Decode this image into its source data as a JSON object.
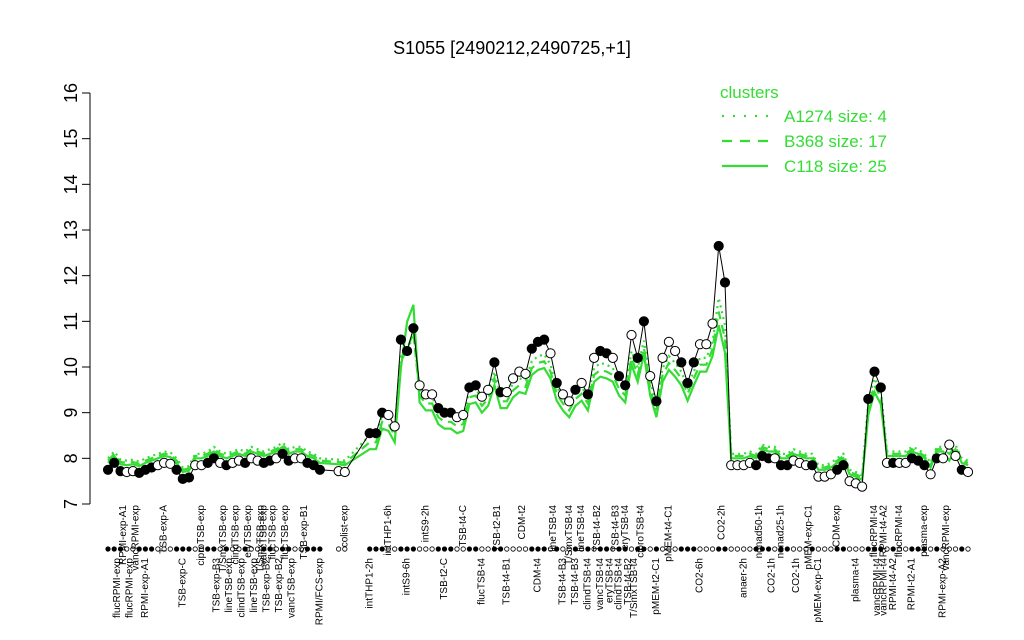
{
  "chart_data": {
    "type": "line",
    "title": "S1055 [2490212,2490725,+1]",
    "xlabel": "",
    "ylabel": "",
    "ylim": [
      7,
      16
    ],
    "yticks": [
      "7",
      "8",
      "9",
      "10",
      "11",
      "12",
      "13",
      "14",
      "15",
      "16"
    ],
    "legend": {
      "title": "clusters",
      "placement": "top-right",
      "entries": [
        {
          "label": "A1274 size: 4",
          "style": "dotted"
        },
        {
          "label": "B368 size: 17",
          "style": "dashed"
        },
        {
          "label": "C118 size: 25",
          "style": "solid"
        }
      ]
    },
    "colors": {
      "cluster": "#33dd33",
      "data": "#000000"
    },
    "xlabels": [
      {
        "label": "flucRPMI-exp",
        "i": 1.5,
        "row": 1
      },
      {
        "label": "RPMI-exp-A1",
        "i": 2.5,
        "row": 0
      },
      {
        "label": "flucRPMI-exp",
        "i": 3.5,
        "row": 1
      },
      {
        "label": "vancRPMI-exp",
        "i": 4.5,
        "row": 0
      },
      {
        "label": "RPMI-exp-A1",
        "i": 6.0,
        "row": 1
      },
      {
        "label": "TSB-exp-A",
        "i": 9.0,
        "row": 0
      },
      {
        "label": "TSB-exp-C",
        "i": 12.0,
        "row": 1
      },
      {
        "label": "ciproTSB-exp",
        "i": 15.0,
        "row": 0
      },
      {
        "label": "TSB-exp-B3",
        "i": 17.5,
        "row": 1
      },
      {
        "label": "T/SmxTSB-exp",
        "i": 18.5,
        "row": 0
      },
      {
        "label": "lineTSB-exp",
        "i": 19.5,
        "row": 1
      },
      {
        "label": "clindTSB-exp",
        "i": 20.5,
        "row": 0
      },
      {
        "label": "clindTSB-exp",
        "i": 21.5,
        "row": 1
      },
      {
        "label": "eryTSB-exp",
        "i": 22.5,
        "row": 0
      },
      {
        "label": "lineTSB-exp",
        "i": 23.5,
        "row": 1
      },
      {
        "label": "T/SmxTSB-exp",
        "i": 24.5,
        "row": 0
      },
      {
        "label": "TSB-exp-B2",
        "i": 25.5,
        "row": 1
      },
      {
        "label": "vancTSB-exp",
        "i": 25.0,
        "row": 0
      },
      {
        "label": "flucTSB-exp",
        "i": 26.5,
        "row": 0
      },
      {
        "label": "TSB-exp-B2",
        "i": 27.5,
        "row": 1
      },
      {
        "label": "flucTSB-exp",
        "i": 28.5,
        "row": 0
      },
      {
        "label": "vancTSB-exp",
        "i": 29.5,
        "row": 1
      },
      {
        "label": "TSB-exp-B1",
        "i": 31.5,
        "row": 0
      },
      {
        "label": "RPMI/FCS-exp",
        "i": 34.0,
        "row": 1
      },
      {
        "label": "colist-exp",
        "i": 38.0,
        "row": 0
      },
      {
        "label": "intTHP1-2h",
        "i": 42.0,
        "row": 1
      },
      {
        "label": "intTHP1-6h",
        "i": 45.0,
        "row": 0
      },
      {
        "label": "intS9-6h",
        "i": 48.0,
        "row": 1
      },
      {
        "label": "intS9-2h",
        "i": 51.0,
        "row": 0
      },
      {
        "label": "TSB-t2-C",
        "i": 54.0,
        "row": 1
      },
      {
        "label": "TSB-t4-C",
        "i": 57.0,
        "row": 0
      },
      {
        "label": "flucTSB-t4",
        "i": 60.0,
        "row": 1
      },
      {
        "label": "TSB-t2-B1",
        "i": 62.5,
        "row": 0
      },
      {
        "label": "TSB-t4-B1",
        "i": 64.0,
        "row": 1
      },
      {
        "label": "CDM-t2",
        "i": 66.5,
        "row": 0
      },
      {
        "label": "CDM-t4",
        "i": 69.0,
        "row": 1
      },
      {
        "label": "lineTSB-t4",
        "i": 71.5,
        "row": 0
      },
      {
        "label": "TSB-t4-B3",
        "i": 73.0,
        "row": 1
      },
      {
        "label": "T/SmxTSB-t4",
        "i": 74.0,
        "row": 0
      },
      {
        "label": "TSB-t4-B3",
        "i": 75.0,
        "row": 1
      },
      {
        "label": "lineTSB-t4",
        "i": 76.0,
        "row": 0
      },
      {
        "label": "clindTSB-t4",
        "i": 77.0,
        "row": 1
      },
      {
        "label": "TSB-t4-B2",
        "i": 78.5,
        "row": 0
      },
      {
        "label": "vancTSB-t4",
        "i": 79.0,
        "row": 1
      },
      {
        "label": "eryTSB-t4",
        "i": 80.5,
        "row": 1
      },
      {
        "label": "TSB-t4-B3",
        "i": 81.5,
        "row": 0
      },
      {
        "label": "clindTSB-t4",
        "i": 82.0,
        "row": 1
      },
      {
        "label": "eryTSB-t4",
        "i": 83.0,
        "row": 0
      },
      {
        "label": "TSB-t4-B2",
        "i": 83.5,
        "row": 1
      },
      {
        "label": "T/SmxTSB-t4",
        "i": 84.5,
        "row": 1
      },
      {
        "label": "ciproTSB-t4",
        "i": 85.5,
        "row": 0
      },
      {
        "label": "pMEM-t2-C1",
        "i": 88.0,
        "row": 1
      },
      {
        "label": "pMEM-t4-C1",
        "i": 90.0,
        "row": 0
      },
      {
        "label": "CO2-6h",
        "i": 95.0,
        "row": 1
      },
      {
        "label": "CO2-2h",
        "i": 98.5,
        "row": 0
      },
      {
        "label": "anaer-2h",
        "i": 102.0,
        "row": 1
      },
      {
        "label": "nonad50-1h",
        "i": 104.5,
        "row": 0
      },
      {
        "label": "CO2-1h",
        "i": 106.5,
        "row": 1
      },
      {
        "label": "nonad25-1h",
        "i": 108.0,
        "row": 0
      },
      {
        "label": "CO2-1h",
        "i": 110.5,
        "row": 1
      },
      {
        "label": "pMEM-exp-C1",
        "i": 112.5,
        "row": 0
      },
      {
        "label": "pMEM-exp-C1",
        "i": 114.0,
        "row": 1
      },
      {
        "label": "CDM-exp",
        "i": 117.0,
        "row": 0
      },
      {
        "label": "plasma-t4",
        "i": 120.0,
        "row": 1
      },
      {
        "label": "flucRPMI-t4",
        "i": 123.0,
        "row": 0
      },
      {
        "label": "vancRPMI-t4",
        "i": 123.5,
        "row": 1
      },
      {
        "label": "RPMI-t4-A2",
        "i": 124.5,
        "row": 0
      },
      {
        "label": "vancRPMI-t4",
        "i": 124.5,
        "row": 1
      },
      {
        "label": "RPMI-t4-A2",
        "i": 126.0,
        "row": 1
      },
      {
        "label": "flucRPMI-t4",
        "i": 127.0,
        "row": 0
      },
      {
        "label": "RPMI-t2-A1",
        "i": 129.0,
        "row": 1
      },
      {
        "label": "plasma-exp",
        "i": 131.0,
        "row": 0
      },
      {
        "label": "RPMI-exp-A2",
        "i": 134.0,
        "row": 1
      },
      {
        "label": "vancRPMI-exp",
        "i": 134.5,
        "row": 0
      }
    ],
    "points": [
      {
        "i": 0,
        "y": 7.75,
        "filled": true
      },
      {
        "i": 1,
        "y": 7.9,
        "filled": true
      },
      {
        "i": 2,
        "y": 7.72,
        "filled": true
      },
      {
        "i": 3,
        "y": 7.7,
        "filled": false
      },
      {
        "i": 4,
        "y": 7.72,
        "filled": false
      },
      {
        "i": 5,
        "y": 7.68,
        "filled": true
      },
      {
        "i": 6,
        "y": 7.75,
        "filled": true
      },
      {
        "i": 7,
        "y": 7.8,
        "filled": true
      },
      {
        "i": 8,
        "y": 7.85,
        "filled": false
      },
      {
        "i": 9,
        "y": 7.9,
        "filled": false
      },
      {
        "i": 10,
        "y": 7.88,
        "filled": false
      },
      {
        "i": 11,
        "y": 7.75,
        "filled": true
      },
      {
        "i": 12,
        "y": 7.55,
        "filled": true
      },
      {
        "i": 13,
        "y": 7.58,
        "filled": true
      },
      {
        "i": 14,
        "y": 7.85,
        "filled": false
      },
      {
        "i": 15,
        "y": 7.85,
        "filled": false
      },
      {
        "i": 16,
        "y": 7.9,
        "filled": true
      },
      {
        "i": 17,
        "y": 8.0,
        "filled": true
      },
      {
        "i": 18,
        "y": 7.9,
        "filled": false
      },
      {
        "i": 19,
        "y": 7.85,
        "filled": true
      },
      {
        "i": 20,
        "y": 7.9,
        "filled": false
      },
      {
        "i": 21,
        "y": 7.95,
        "filled": false
      },
      {
        "i": 22,
        "y": 7.9,
        "filled": true
      },
      {
        "i": 23,
        "y": 8.0,
        "filled": false
      },
      {
        "i": 24,
        "y": 7.95,
        "filled": false
      },
      {
        "i": 25,
        "y": 7.9,
        "filled": true
      },
      {
        "i": 26,
        "y": 7.95,
        "filled": true
      },
      {
        "i": 27,
        "y": 8.0,
        "filled": false
      },
      {
        "i": 28,
        "y": 8.1,
        "filled": true
      },
      {
        "i": 29,
        "y": 7.95,
        "filled": true
      },
      {
        "i": 30,
        "y": 8.0,
        "filled": false
      },
      {
        "i": 31,
        "y": 8.0,
        "filled": false
      },
      {
        "i": 32,
        "y": 7.9,
        "filled": true
      },
      {
        "i": 33,
        "y": 7.85,
        "filled": true
      },
      {
        "i": 34,
        "y": 7.75,
        "filled": true
      },
      {
        "i": 37,
        "y": 7.72,
        "filled": false
      },
      {
        "i": 38,
        "y": 7.7,
        "filled": false
      },
      {
        "i": 42,
        "y": 8.55,
        "filled": true
      },
      {
        "i": 43,
        "y": 8.55,
        "filled": true
      },
      {
        "i": 44,
        "y": 9.0,
        "filled": true
      },
      {
        "i": 45,
        "y": 8.95,
        "filled": false
      },
      {
        "i": 46,
        "y": 8.7,
        "filled": false
      },
      {
        "i": 47,
        "y": 10.6,
        "filled": true
      },
      {
        "i": 48,
        "y": 10.35,
        "filled": true
      },
      {
        "i": 49,
        "y": 10.85,
        "filled": true
      },
      {
        "i": 50,
        "y": 9.6,
        "filled": false
      },
      {
        "i": 51,
        "y": 9.4,
        "filled": false
      },
      {
        "i": 52,
        "y": 9.4,
        "filled": false
      },
      {
        "i": 53,
        "y": 9.1,
        "filled": true
      },
      {
        "i": 54,
        "y": 9.0,
        "filled": true
      },
      {
        "i": 55,
        "y": 9.0,
        "filled": true
      },
      {
        "i": 56,
        "y": 8.9,
        "filled": false
      },
      {
        "i": 57,
        "y": 8.95,
        "filled": false
      },
      {
        "i": 58,
        "y": 9.55,
        "filled": true
      },
      {
        "i": 59,
        "y": 9.6,
        "filled": true
      },
      {
        "i": 60,
        "y": 9.35,
        "filled": false
      },
      {
        "i": 61,
        "y": 9.5,
        "filled": false
      },
      {
        "i": 62,
        "y": 10.1,
        "filled": true
      },
      {
        "i": 63,
        "y": 9.45,
        "filled": true
      },
      {
        "i": 64,
        "y": 9.45,
        "filled": false
      },
      {
        "i": 65,
        "y": 9.75,
        "filled": false
      },
      {
        "i": 66,
        "y": 9.9,
        "filled": false
      },
      {
        "i": 67,
        "y": 9.85,
        "filled": false
      },
      {
        "i": 68,
        "y": 10.4,
        "filled": true
      },
      {
        "i": 69,
        "y": 10.55,
        "filled": true
      },
      {
        "i": 70,
        "y": 10.6,
        "filled": true
      },
      {
        "i": 71,
        "y": 10.3,
        "filled": false
      },
      {
        "i": 72,
        "y": 9.65,
        "filled": true
      },
      {
        "i": 73,
        "y": 9.4,
        "filled": false
      },
      {
        "i": 74,
        "y": 9.25,
        "filled": false
      },
      {
        "i": 75,
        "y": 9.5,
        "filled": true
      },
      {
        "i": 76,
        "y": 9.65,
        "filled": false
      },
      {
        "i": 77,
        "y": 9.4,
        "filled": true
      },
      {
        "i": 78,
        "y": 10.2,
        "filled": false
      },
      {
        "i": 79,
        "y": 10.35,
        "filled": true
      },
      {
        "i": 80,
        "y": 10.3,
        "filled": true
      },
      {
        "i": 81,
        "y": 10.2,
        "filled": false
      },
      {
        "i": 82,
        "y": 9.8,
        "filled": true
      },
      {
        "i": 83,
        "y": 9.6,
        "filled": true
      },
      {
        "i": 84,
        "y": 10.7,
        "filled": false
      },
      {
        "i": 85,
        "y": 10.2,
        "filled": true
      },
      {
        "i": 86,
        "y": 11.0,
        "filled": true
      },
      {
        "i": 87,
        "y": 9.8,
        "filled": false
      },
      {
        "i": 88,
        "y": 9.25,
        "filled": true
      },
      {
        "i": 89,
        "y": 10.2,
        "filled": false
      },
      {
        "i": 90,
        "y": 10.55,
        "filled": false
      },
      {
        "i": 91,
        "y": 10.35,
        "filled": false
      },
      {
        "i": 92,
        "y": 10.1,
        "filled": true
      },
      {
        "i": 93,
        "y": 9.65,
        "filled": true
      },
      {
        "i": 94,
        "y": 10.1,
        "filled": true
      },
      {
        "i": 95,
        "y": 10.5,
        "filled": false
      },
      {
        "i": 96,
        "y": 10.5,
        "filled": false
      },
      {
        "i": 97,
        "y": 10.95,
        "filled": false
      },
      {
        "i": 98,
        "y": 12.65,
        "filled": true
      },
      {
        "i": 99,
        "y": 11.85,
        "filled": true
      },
      {
        "i": 100,
        "y": 7.85,
        "filled": false
      },
      {
        "i": 101,
        "y": 7.85,
        "filled": false
      },
      {
        "i": 102,
        "y": 7.85,
        "filled": false
      },
      {
        "i": 103,
        "y": 7.9,
        "filled": false
      },
      {
        "i": 104,
        "y": 7.85,
        "filled": true
      },
      {
        "i": 105,
        "y": 8.05,
        "filled": true
      },
      {
        "i": 106,
        "y": 8.0,
        "filled": true
      },
      {
        "i": 107,
        "y": 8.0,
        "filled": false
      },
      {
        "i": 108,
        "y": 7.85,
        "filled": true
      },
      {
        "i": 109,
        "y": 7.85,
        "filled": true
      },
      {
        "i": 110,
        "y": 7.95,
        "filled": false
      },
      {
        "i": 111,
        "y": 7.9,
        "filled": false
      },
      {
        "i": 112,
        "y": 7.85,
        "filled": false
      },
      {
        "i": 113,
        "y": 7.85,
        "filled": true
      },
      {
        "i": 114,
        "y": 7.6,
        "filled": false
      },
      {
        "i": 115,
        "y": 7.6,
        "filled": false
      },
      {
        "i": 116,
        "y": 7.65,
        "filled": false
      },
      {
        "i": 117,
        "y": 7.75,
        "filled": true
      },
      {
        "i": 118,
        "y": 7.85,
        "filled": true
      },
      {
        "i": 119,
        "y": 7.5,
        "filled": false
      },
      {
        "i": 120,
        "y": 7.45,
        "filled": false
      },
      {
        "i": 121,
        "y": 7.38,
        "filled": false
      },
      {
        "i": 122,
        "y": 9.3,
        "filled": true
      },
      {
        "i": 123,
        "y": 9.9,
        "filled": true
      },
      {
        "i": 124,
        "y": 9.55,
        "filled": true
      },
      {
        "i": 125,
        "y": 7.9,
        "filled": false
      },
      {
        "i": 126,
        "y": 7.9,
        "filled": true
      },
      {
        "i": 127,
        "y": 7.9,
        "filled": false
      },
      {
        "i": 128,
        "y": 7.9,
        "filled": false
      },
      {
        "i": 129,
        "y": 8.0,
        "filled": true
      },
      {
        "i": 130,
        "y": 7.95,
        "filled": true
      },
      {
        "i": 131,
        "y": 7.85,
        "filled": true
      },
      {
        "i": 132,
        "y": 7.65,
        "filled": false
      },
      {
        "i": 133,
        "y": 8.0,
        "filled": true
      },
      {
        "i": 134,
        "y": 8.0,
        "filled": false
      },
      {
        "i": 135,
        "y": 8.3,
        "filled": false
      },
      {
        "i": 136,
        "y": 8.05,
        "filled": false
      },
      {
        "i": 137,
        "y": 7.75,
        "filled": true
      },
      {
        "i": 138,
        "y": 7.7,
        "filled": false
      }
    ],
    "series": [
      {
        "style": "solid",
        "offset": -0.35,
        "spike": 1.2
      },
      {
        "style": "dashed",
        "offset": -0.2,
        "spike": 0.45
      },
      {
        "style": "dotted",
        "offset": -0.05,
        "spike": 0.25
      }
    ]
  }
}
